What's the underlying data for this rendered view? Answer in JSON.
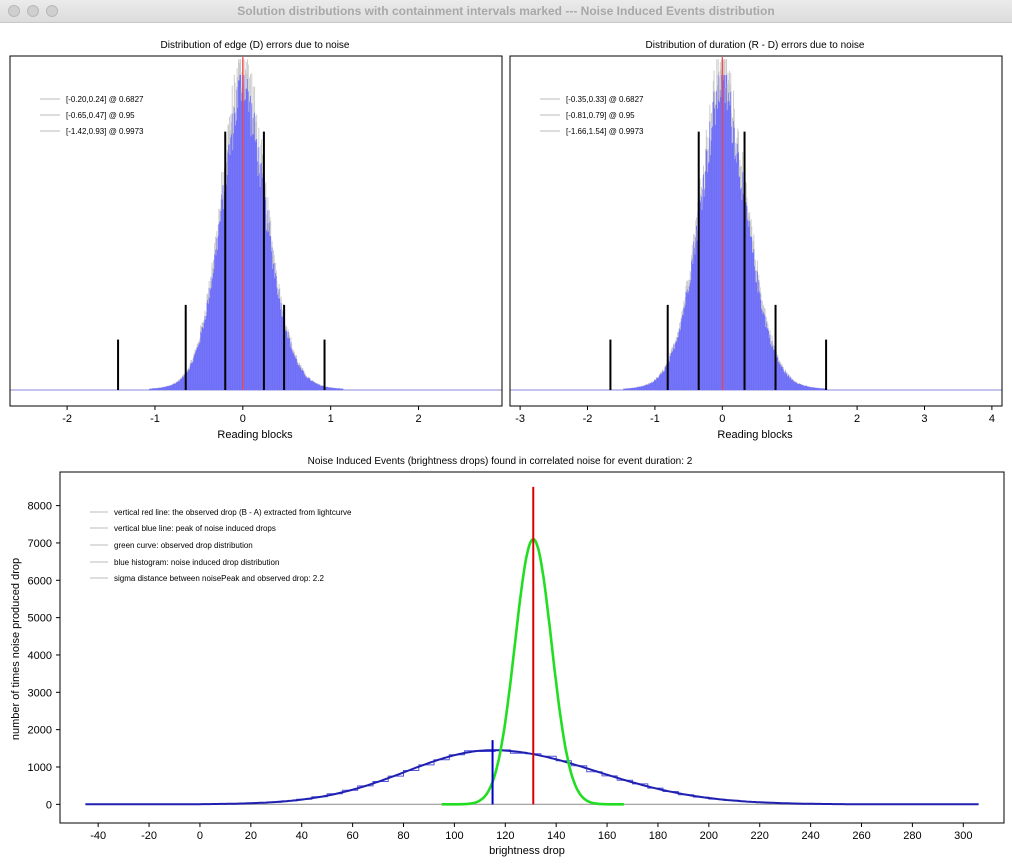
{
  "window": {
    "title": "Solution distributions with containment intervals marked --- Noise Induced Events distribution"
  },
  "colors": {
    "histogram_fill": "#6e6ef8",
    "histogram_edge": "#c8c8c8",
    "marker_red": "#ff3c3c",
    "interval_line": "#000000",
    "bottom_red": "#dd0000",
    "bottom_blue": "#0000cc",
    "bottom_green": "#22dd22",
    "noise_line": "#2020b0"
  },
  "chart_data": [
    {
      "type": "bar",
      "title": "Distribution of edge (D) errors due to noise",
      "xlabel": "Reading blocks",
      "xlim": [
        -2.65,
        2.95
      ],
      "xticks": [
        -2,
        -1,
        0,
        1,
        2
      ],
      "ylim": [
        0,
        1.06
      ],
      "center": 0.0,
      "sigma_left": 0.26,
      "sigma_right": 0.28,
      "legend_position": "top-left",
      "legend": [
        "[-0.20,0.24] @ 0.6827",
        "[-0.65,0.47] @ 0.95",
        "[-1.42,0.93] @ 0.9973"
      ],
      "intervals": [
        {
          "label": "0.6827",
          "low": -0.2,
          "high": 0.24,
          "height": 0.82
        },
        {
          "label": "0.95",
          "low": -0.65,
          "high": 0.47,
          "height": 0.27
        },
        {
          "label": "0.9973",
          "low": -1.42,
          "high": 0.93,
          "height": 0.16
        }
      ]
    },
    {
      "type": "bar",
      "title": "Distribution of duration (R - D) errors due to noise",
      "xlabel": "Reading blocks",
      "xlim": [
        -3.15,
        4.15
      ],
      "xticks": [
        -3,
        -2,
        -1,
        0,
        1,
        2,
        3,
        4
      ],
      "ylim": [
        0,
        1.06
      ],
      "center": 0.0,
      "sigma_left": 0.36,
      "sigma_right": 0.38,
      "legend_position": "top-left",
      "legend": [
        "[-0.35,0.33] @ 0.6827",
        "[-0.81,0.79] @ 0.95",
        "[-1.66,1.54] @ 0.9973"
      ],
      "intervals": [
        {
          "label": "0.6827",
          "low": -0.35,
          "high": 0.33,
          "height": 0.82
        },
        {
          "label": "0.95",
          "low": -0.81,
          "high": 0.79,
          "height": 0.27
        },
        {
          "label": "0.9973",
          "low": -1.66,
          "high": 1.54,
          "height": 0.16
        }
      ]
    },
    {
      "type": "line",
      "title": "Noise Induced Events (brightness drops) found in correlated noise for event duration: 2",
      "xlabel": "brightness drop",
      "ylabel": "number of times noise produced drop",
      "xlim": [
        -55,
        316
      ],
      "ylim": [
        -500,
        8900
      ],
      "xticks": [
        -40,
        -20,
        0,
        20,
        40,
        60,
        80,
        100,
        120,
        140,
        160,
        180,
        200,
        220,
        240,
        260,
        280,
        300
      ],
      "yticks": [
        0,
        1000,
        2000,
        3000,
        4000,
        5000,
        6000,
        7000,
        8000
      ],
      "legend_position": "top-left",
      "legend": [
        "vertical red line: the observed drop (B - A) extracted from lightcurve",
        "vertical blue line: peak of noise induced drops",
        "green curve: observed drop distribution",
        "blue histogram: noise induced drop distribution",
        "sigma distance between noisePeak and observed drop: 2.2"
      ],
      "observed_drop": 131,
      "observed_drop_line_top": 8500,
      "noise_peak": 115,
      "noise_peak_line_top": 1720,
      "baseline_range": [
        -45,
        306
      ],
      "series": [
        {
          "name": "noise induced drop distribution",
          "peak_x": 115,
          "peak_y": 1450,
          "sigma_left": 34,
          "sigma_right": 41
        },
        {
          "name": "observed drop distribution",
          "peak_x": 131,
          "peak_y": 7100,
          "sigma_left": 7.2,
          "sigma_right": 7.2
        }
      ]
    }
  ]
}
